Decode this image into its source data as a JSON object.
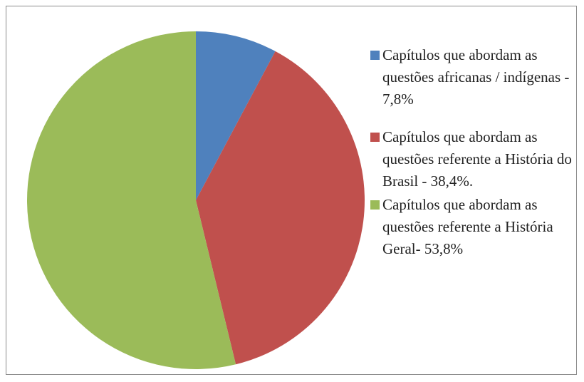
{
  "chart_data": {
    "type": "pie",
    "categories": [
      "Capítulos que abordam as questões africanas / indígenas - 7,8%",
      "Capítulos que abordam as questões referente a História do Brasil - 38,4%.",
      "Capítulos que abordam as questões referente a História Geral- 53,8%"
    ],
    "values": [
      7.8,
      38.4,
      53.8
    ],
    "colors": [
      "#4f81bd",
      "#c0504d",
      "#9bbb59"
    ],
    "legend": "right"
  }
}
